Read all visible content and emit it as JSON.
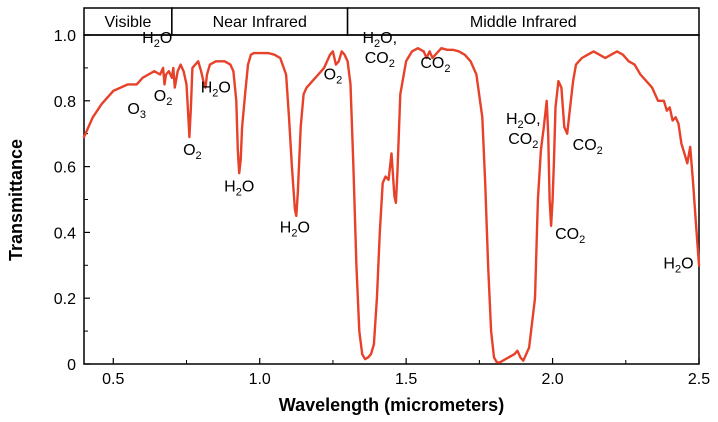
{
  "chart_data": {
    "type": "line",
    "title": "",
    "xlabel": "Wavelength (micrometers)",
    "ylabel": "Transmittance",
    "xlim": [
      0.4,
      2.5
    ],
    "ylim": [
      0,
      1.0
    ],
    "grid": false,
    "line_color": "#e8412a",
    "x_ticks": [
      {
        "v": 0.5,
        "label": "0.5"
      },
      {
        "v": 1.0,
        "label": "1.0"
      },
      {
        "v": 1.5,
        "label": "1.5"
      },
      {
        "v": 2.0,
        "label": "2.0"
      },
      {
        "v": 2.5,
        "label": "2.5"
      }
    ],
    "y_ticks": [
      {
        "v": 0,
        "label": "0"
      },
      {
        "v": 0.2,
        "label": "0.2"
      },
      {
        "v": 0.4,
        "label": "0.4"
      },
      {
        "v": 0.6,
        "label": "0.6"
      },
      {
        "v": 0.8,
        "label": "0.8"
      },
      {
        "v": 1.0,
        "label": "1.0"
      }
    ],
    "bands": [
      {
        "label": "Visible",
        "from": 0.4,
        "to": 0.7
      },
      {
        "label": "Near Infrared",
        "from": 0.7,
        "to": 1.3
      },
      {
        "label": "Middle Infrared",
        "from": 1.3,
        "to": 2.5
      }
    ],
    "annotations": [
      {
        "id": "o3",
        "lines": [
          [
            [
              "O",
              ""
            ],
            [
              "3",
              "sub"
            ]
          ]
        ],
        "x": 0.58,
        "y": 0.76
      },
      {
        "id": "h2o-top",
        "lines": [
          [
            [
              "H",
              ""
            ],
            [
              "2",
              "sub"
            ],
            [
              "O",
              ""
            ]
          ]
        ],
        "x": 0.65,
        "y": 0.975
      },
      {
        "id": "o2-a",
        "lines": [
          [
            [
              "O",
              ""
            ],
            [
              "2",
              "sub"
            ]
          ]
        ],
        "x": 0.67,
        "y": 0.8
      },
      {
        "id": "h2o-b",
        "lines": [
          [
            [
              "H",
              ""
            ],
            [
              "2",
              "sub"
            ],
            [
              "O",
              ""
            ]
          ]
        ],
        "x": 0.85,
        "y": 0.825
      },
      {
        "id": "o2-b",
        "lines": [
          [
            [
              "O",
              ""
            ],
            [
              "2",
              "sub"
            ]
          ]
        ],
        "x": 0.77,
        "y": 0.635
      },
      {
        "id": "h2o-c",
        "lines": [
          [
            [
              "H",
              ""
            ],
            [
              "2",
              "sub"
            ],
            [
              "O",
              ""
            ]
          ]
        ],
        "x": 0.93,
        "y": 0.525
      },
      {
        "id": "h2o-d",
        "lines": [
          [
            [
              "H",
              ""
            ],
            [
              "2",
              "sub"
            ],
            [
              "O",
              ""
            ]
          ]
        ],
        "x": 1.12,
        "y": 0.4
      },
      {
        "id": "o2-c",
        "lines": [
          [
            [
              "O",
              ""
            ],
            [
              "2",
              "sub"
            ]
          ]
        ],
        "x": 1.25,
        "y": 0.865
      },
      {
        "id": "h2o-co2-a",
        "lines": [
          [
            [
              "H",
              ""
            ],
            [
              "2",
              "sub"
            ],
            [
              "O,",
              ""
            ]
          ],
          [
            [
              "CO",
              ""
            ],
            [
              "2",
              "sub"
            ]
          ]
        ],
        "x": 1.41,
        "y": 0.975
      },
      {
        "id": "co2-a",
        "lines": [
          [
            [
              "CO",
              ""
            ],
            [
              "2",
              "sub"
            ]
          ]
        ],
        "x": 1.6,
        "y": 0.9
      },
      {
        "id": "h2o-co2-b",
        "lines": [
          [
            [
              "H",
              ""
            ],
            [
              "2",
              "sub"
            ],
            [
              "O,",
              ""
            ]
          ],
          [
            [
              "CO",
              ""
            ],
            [
              "2",
              "sub"
            ]
          ]
        ],
        "x": 1.9,
        "y": 0.73
      },
      {
        "id": "co2-b",
        "lines": [
          [
            [
              "CO",
              ""
            ],
            [
              "2",
              "sub"
            ]
          ]
        ],
        "x": 2.12,
        "y": 0.65
      },
      {
        "id": "co2-c",
        "lines": [
          [
            [
              "CO",
              ""
            ],
            [
              "2",
              "sub"
            ]
          ]
        ],
        "x": 2.06,
        "y": 0.38
      },
      {
        "id": "h2o-e",
        "lines": [
          [
            [
              "H",
              ""
            ],
            [
              "2",
              "sub"
            ],
            [
              "O",
              ""
            ]
          ]
        ],
        "x": 2.43,
        "y": 0.29
      }
    ],
    "series": [
      {
        "x": [
          0.4,
          0.43,
          0.46,
          0.5,
          0.55,
          0.58,
          0.6,
          0.62,
          0.64,
          0.66,
          0.67,
          0.675,
          0.68,
          0.69,
          0.7,
          0.705,
          0.71,
          0.72,
          0.73,
          0.74,
          0.75,
          0.755,
          0.76,
          0.765,
          0.77,
          0.78,
          0.79,
          0.8,
          0.81,
          0.815,
          0.82,
          0.83,
          0.85,
          0.88,
          0.9,
          0.91,
          0.92,
          0.925,
          0.93,
          0.935,
          0.94,
          0.95,
          0.96,
          0.97,
          0.98,
          1.0,
          1.03,
          1.05,
          1.07,
          1.09,
          1.1,
          1.11,
          1.12,
          1.125,
          1.13,
          1.14,
          1.15,
          1.16,
          1.17,
          1.18,
          1.2,
          1.22,
          1.24,
          1.25,
          1.26,
          1.27,
          1.28,
          1.29,
          1.3,
          1.31,
          1.32,
          1.33,
          1.34,
          1.35,
          1.36,
          1.37,
          1.38,
          1.39,
          1.4,
          1.41,
          1.42,
          1.43,
          1.44,
          1.45,
          1.46,
          1.465,
          1.47,
          1.48,
          1.5,
          1.52,
          1.54,
          1.56,
          1.57,
          1.58,
          1.59,
          1.6,
          1.61,
          1.62,
          1.64,
          1.66,
          1.68,
          1.7,
          1.72,
          1.74,
          1.76,
          1.77,
          1.78,
          1.79,
          1.8,
          1.81,
          1.82,
          1.83,
          1.85,
          1.87,
          1.88,
          1.89,
          1.9,
          1.92,
          1.94,
          1.95,
          1.96,
          1.97,
          1.98,
          1.985,
          1.99,
          1.995,
          2.0,
          2.005,
          2.01,
          2.02,
          2.03,
          2.04,
          2.05,
          2.06,
          2.07,
          2.08,
          2.1,
          2.12,
          2.14,
          2.16,
          2.18,
          2.2,
          2.22,
          2.24,
          2.26,
          2.28,
          2.3,
          2.32,
          2.34,
          2.36,
          2.38,
          2.39,
          2.4,
          2.41,
          2.42,
          2.43,
          2.44,
          2.45,
          2.46,
          2.47,
          2.48,
          2.49,
          2.5
        ],
        "y": [
          0.69,
          0.75,
          0.79,
          0.83,
          0.85,
          0.85,
          0.87,
          0.88,
          0.89,
          0.88,
          0.9,
          0.85,
          0.88,
          0.89,
          0.87,
          0.9,
          0.84,
          0.89,
          0.91,
          0.89,
          0.85,
          0.77,
          0.69,
          0.78,
          0.9,
          0.91,
          0.92,
          0.89,
          0.85,
          0.84,
          0.88,
          0.91,
          0.92,
          0.92,
          0.91,
          0.89,
          0.8,
          0.65,
          0.58,
          0.62,
          0.72,
          0.82,
          0.91,
          0.94,
          0.945,
          0.945,
          0.945,
          0.94,
          0.93,
          0.88,
          0.75,
          0.6,
          0.47,
          0.45,
          0.52,
          0.72,
          0.82,
          0.84,
          0.85,
          0.86,
          0.88,
          0.9,
          0.94,
          0.95,
          0.91,
          0.92,
          0.95,
          0.94,
          0.92,
          0.85,
          0.6,
          0.3,
          0.1,
          0.03,
          0.015,
          0.02,
          0.03,
          0.06,
          0.2,
          0.4,
          0.55,
          0.57,
          0.56,
          0.64,
          0.51,
          0.49,
          0.58,
          0.82,
          0.92,
          0.95,
          0.96,
          0.95,
          0.93,
          0.95,
          0.93,
          0.94,
          0.95,
          0.96,
          0.955,
          0.955,
          0.95,
          0.94,
          0.92,
          0.88,
          0.75,
          0.55,
          0.3,
          0.1,
          0.02,
          0.005,
          0.005,
          0.01,
          0.02,
          0.03,
          0.04,
          0.02,
          0.01,
          0.05,
          0.2,
          0.5,
          0.65,
          0.72,
          0.8,
          0.7,
          0.5,
          0.42,
          0.5,
          0.62,
          0.78,
          0.86,
          0.84,
          0.72,
          0.7,
          0.78,
          0.86,
          0.91,
          0.93,
          0.94,
          0.95,
          0.94,
          0.93,
          0.94,
          0.95,
          0.94,
          0.92,
          0.91,
          0.88,
          0.86,
          0.84,
          0.8,
          0.8,
          0.77,
          0.78,
          0.74,
          0.75,
          0.73,
          0.67,
          0.64,
          0.61,
          0.66,
          0.55,
          0.42,
          0.3
        ]
      }
    ]
  }
}
